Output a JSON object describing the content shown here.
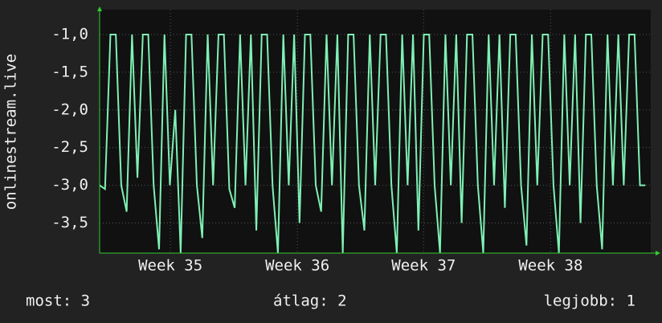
{
  "chart_data": {
    "type": "line",
    "y_label": "onlinestream.live",
    "x": [
      0,
      0.3,
      0.6,
      0.9,
      1.2,
      1.5,
      1.8,
      2.1,
      2.4,
      2.7,
      3,
      3.3,
      3.6,
      3.9,
      4.2,
      4.5,
      4.8,
      5.1,
      5.4,
      5.7,
      6,
      6.3,
      6.6,
      6.9,
      7.2,
      7.5,
      7.8,
      8.1,
      8.4,
      8.7,
      9,
      9.3,
      9.6,
      9.9,
      10.2,
      10.5,
      10.8,
      11.1,
      11.4,
      11.7,
      12,
      12.3,
      12.6,
      12.9,
      13.2,
      13.5,
      13.8,
      14.1,
      14.4,
      14.7,
      15,
      15.3,
      15.6,
      15.9,
      16.2,
      16.5,
      16.8,
      17.1,
      17.4,
      17.7,
      18,
      18.3,
      18.6,
      18.9,
      19.2,
      19.5,
      19.8,
      20.1,
      20.4,
      20.7,
      21,
      21.3,
      21.6,
      21.9,
      22.2,
      22.5,
      22.8,
      23.1,
      23.4,
      23.7,
      24,
      24.3,
      24.6,
      24.9,
      25.2,
      25.5,
      25.8,
      26.1,
      26.4,
      26.7,
      27,
      27.3,
      27.6,
      27.9,
      28.2,
      28.5,
      28.8,
      29.1,
      29.4,
      29.7,
      30,
      30.3
    ],
    "series": [
      {
        "color": "#7ff0b4",
        "values": [
          -3.0,
          -3.05,
          -1.0,
          -1.0,
          -3.0,
          -3.35,
          -1.0,
          -2.9,
          -1.0,
          -1.0,
          -3.0,
          -3.85,
          -1.0,
          -3.0,
          -2.0,
          -3.9,
          -1.0,
          -1.0,
          -3.0,
          -3.7,
          -1.0,
          -3.0,
          -1.0,
          -1.0,
          -3.05,
          -3.3,
          -1.0,
          -3.0,
          -1.0,
          -3.6,
          -1.0,
          -1.0,
          -3.0,
          -3.9,
          -1.0,
          -3.0,
          -1.0,
          -3.5,
          -1.0,
          -1.0,
          -3.0,
          -3.35,
          -1.0,
          -3.0,
          -1.0,
          -3.9,
          -1.0,
          -1.0,
          -3.0,
          -3.6,
          -1.0,
          -3.0,
          -1.0,
          -1.0,
          -3.0,
          -3.9,
          -1.0,
          -3.0,
          -1.0,
          -3.6,
          -1.0,
          -1.0,
          -3.0,
          -3.9,
          -1.0,
          -3.0,
          -1.0,
          -3.5,
          -1.0,
          -1.0,
          -3.0,
          -3.9,
          -1.0,
          -3.0,
          -1.0,
          -3.3,
          -1.0,
          -1.0,
          -3.0,
          -3.8,
          -1.0,
          -3.0,
          -1.0,
          -1.0,
          -3.0,
          -3.9,
          -1.0,
          -3.0,
          -1.0,
          -3.5,
          -1.0,
          -1.0,
          -3.0,
          -3.85,
          -1.0,
          -3.0,
          -1.0,
          -3.0,
          -1.0,
          -1.0,
          -3.0,
          -3.0
        ]
      }
    ],
    "xlim": [
      0,
      30.6
    ],
    "xticks": [
      {
        "value": 3.93,
        "label": "Week 35"
      },
      {
        "value": 10.98,
        "label": "Week 36"
      },
      {
        "value": 17.99,
        "label": "Week 37"
      },
      {
        "value": 25.04,
        "label": "Week 38"
      }
    ],
    "ylim": [
      -3.9,
      -0.67
    ],
    "yticks": [
      {
        "value": -1.0,
        "label": "-1,0"
      },
      {
        "value": -1.5,
        "label": "-1,5"
      },
      {
        "value": -2.0,
        "label": "-2,0"
      },
      {
        "value": -2.5,
        "label": "-2,5"
      },
      {
        "value": -3.0,
        "label": "-3,0"
      },
      {
        "value": -3.5,
        "label": "-3,5"
      }
    ],
    "grid": true,
    "footer": [
      "most: 3",
      "átlag: 2",
      "legjobb: 1"
    ]
  }
}
